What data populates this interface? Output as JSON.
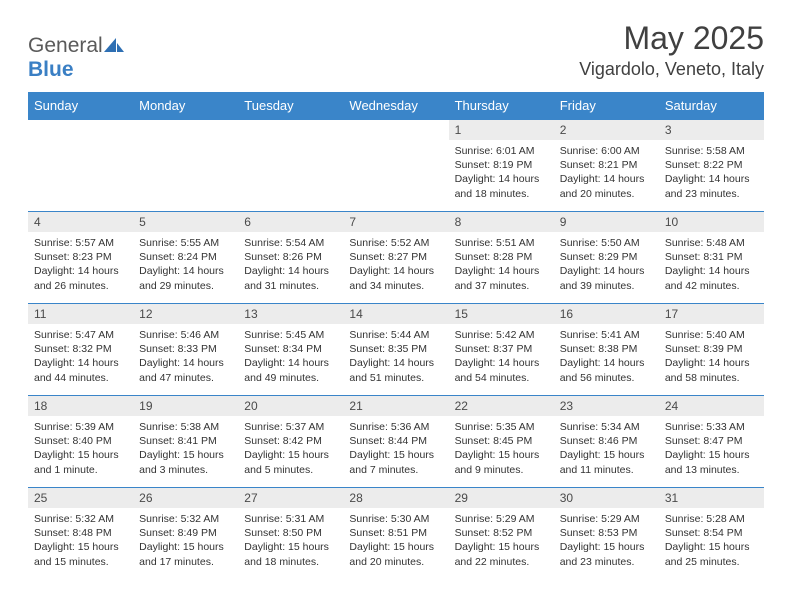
{
  "brand": {
    "part1": "General",
    "part2": "Blue"
  },
  "title": "May 2025",
  "location": "Vigardolo, Veneto, Italy",
  "colors": {
    "header_bg": "#3a85c9",
    "header_text": "#ffffff",
    "daynum_bg": "#ececec",
    "body_text": "#333333",
    "rule": "#3a85c9",
    "page_bg": "#ffffff",
    "logo_gray": "#5a5a5a",
    "logo_blue": "#3a7fc4"
  },
  "weekdays": [
    "Sunday",
    "Monday",
    "Tuesday",
    "Wednesday",
    "Thursday",
    "Friday",
    "Saturday"
  ],
  "weeks": [
    [
      null,
      null,
      null,
      null,
      {
        "n": "1",
        "sunrise": "Sunrise: 6:01 AM",
        "sunset": "Sunset: 8:19 PM",
        "daylight": "Daylight: 14 hours and 18 minutes."
      },
      {
        "n": "2",
        "sunrise": "Sunrise: 6:00 AM",
        "sunset": "Sunset: 8:21 PM",
        "daylight": "Daylight: 14 hours and 20 minutes."
      },
      {
        "n": "3",
        "sunrise": "Sunrise: 5:58 AM",
        "sunset": "Sunset: 8:22 PM",
        "daylight": "Daylight: 14 hours and 23 minutes."
      }
    ],
    [
      {
        "n": "4",
        "sunrise": "Sunrise: 5:57 AM",
        "sunset": "Sunset: 8:23 PM",
        "daylight": "Daylight: 14 hours and 26 minutes."
      },
      {
        "n": "5",
        "sunrise": "Sunrise: 5:55 AM",
        "sunset": "Sunset: 8:24 PM",
        "daylight": "Daylight: 14 hours and 29 minutes."
      },
      {
        "n": "6",
        "sunrise": "Sunrise: 5:54 AM",
        "sunset": "Sunset: 8:26 PM",
        "daylight": "Daylight: 14 hours and 31 minutes."
      },
      {
        "n": "7",
        "sunrise": "Sunrise: 5:52 AM",
        "sunset": "Sunset: 8:27 PM",
        "daylight": "Daylight: 14 hours and 34 minutes."
      },
      {
        "n": "8",
        "sunrise": "Sunrise: 5:51 AM",
        "sunset": "Sunset: 8:28 PM",
        "daylight": "Daylight: 14 hours and 37 minutes."
      },
      {
        "n": "9",
        "sunrise": "Sunrise: 5:50 AM",
        "sunset": "Sunset: 8:29 PM",
        "daylight": "Daylight: 14 hours and 39 minutes."
      },
      {
        "n": "10",
        "sunrise": "Sunrise: 5:48 AM",
        "sunset": "Sunset: 8:31 PM",
        "daylight": "Daylight: 14 hours and 42 minutes."
      }
    ],
    [
      {
        "n": "11",
        "sunrise": "Sunrise: 5:47 AM",
        "sunset": "Sunset: 8:32 PM",
        "daylight": "Daylight: 14 hours and 44 minutes."
      },
      {
        "n": "12",
        "sunrise": "Sunrise: 5:46 AM",
        "sunset": "Sunset: 8:33 PM",
        "daylight": "Daylight: 14 hours and 47 minutes."
      },
      {
        "n": "13",
        "sunrise": "Sunrise: 5:45 AM",
        "sunset": "Sunset: 8:34 PM",
        "daylight": "Daylight: 14 hours and 49 minutes."
      },
      {
        "n": "14",
        "sunrise": "Sunrise: 5:44 AM",
        "sunset": "Sunset: 8:35 PM",
        "daylight": "Daylight: 14 hours and 51 minutes."
      },
      {
        "n": "15",
        "sunrise": "Sunrise: 5:42 AM",
        "sunset": "Sunset: 8:37 PM",
        "daylight": "Daylight: 14 hours and 54 minutes."
      },
      {
        "n": "16",
        "sunrise": "Sunrise: 5:41 AM",
        "sunset": "Sunset: 8:38 PM",
        "daylight": "Daylight: 14 hours and 56 minutes."
      },
      {
        "n": "17",
        "sunrise": "Sunrise: 5:40 AM",
        "sunset": "Sunset: 8:39 PM",
        "daylight": "Daylight: 14 hours and 58 minutes."
      }
    ],
    [
      {
        "n": "18",
        "sunrise": "Sunrise: 5:39 AM",
        "sunset": "Sunset: 8:40 PM",
        "daylight": "Daylight: 15 hours and 1 minute."
      },
      {
        "n": "19",
        "sunrise": "Sunrise: 5:38 AM",
        "sunset": "Sunset: 8:41 PM",
        "daylight": "Daylight: 15 hours and 3 minutes."
      },
      {
        "n": "20",
        "sunrise": "Sunrise: 5:37 AM",
        "sunset": "Sunset: 8:42 PM",
        "daylight": "Daylight: 15 hours and 5 minutes."
      },
      {
        "n": "21",
        "sunrise": "Sunrise: 5:36 AM",
        "sunset": "Sunset: 8:44 PM",
        "daylight": "Daylight: 15 hours and 7 minutes."
      },
      {
        "n": "22",
        "sunrise": "Sunrise: 5:35 AM",
        "sunset": "Sunset: 8:45 PM",
        "daylight": "Daylight: 15 hours and 9 minutes."
      },
      {
        "n": "23",
        "sunrise": "Sunrise: 5:34 AM",
        "sunset": "Sunset: 8:46 PM",
        "daylight": "Daylight: 15 hours and 11 minutes."
      },
      {
        "n": "24",
        "sunrise": "Sunrise: 5:33 AM",
        "sunset": "Sunset: 8:47 PM",
        "daylight": "Daylight: 15 hours and 13 minutes."
      }
    ],
    [
      {
        "n": "25",
        "sunrise": "Sunrise: 5:32 AM",
        "sunset": "Sunset: 8:48 PM",
        "daylight": "Daylight: 15 hours and 15 minutes."
      },
      {
        "n": "26",
        "sunrise": "Sunrise: 5:32 AM",
        "sunset": "Sunset: 8:49 PM",
        "daylight": "Daylight: 15 hours and 17 minutes."
      },
      {
        "n": "27",
        "sunrise": "Sunrise: 5:31 AM",
        "sunset": "Sunset: 8:50 PM",
        "daylight": "Daylight: 15 hours and 18 minutes."
      },
      {
        "n": "28",
        "sunrise": "Sunrise: 5:30 AM",
        "sunset": "Sunset: 8:51 PM",
        "daylight": "Daylight: 15 hours and 20 minutes."
      },
      {
        "n": "29",
        "sunrise": "Sunrise: 5:29 AM",
        "sunset": "Sunset: 8:52 PM",
        "daylight": "Daylight: 15 hours and 22 minutes."
      },
      {
        "n": "30",
        "sunrise": "Sunrise: 5:29 AM",
        "sunset": "Sunset: 8:53 PM",
        "daylight": "Daylight: 15 hours and 23 minutes."
      },
      {
        "n": "31",
        "sunrise": "Sunrise: 5:28 AM",
        "sunset": "Sunset: 8:54 PM",
        "daylight": "Daylight: 15 hours and 25 minutes."
      }
    ]
  ]
}
